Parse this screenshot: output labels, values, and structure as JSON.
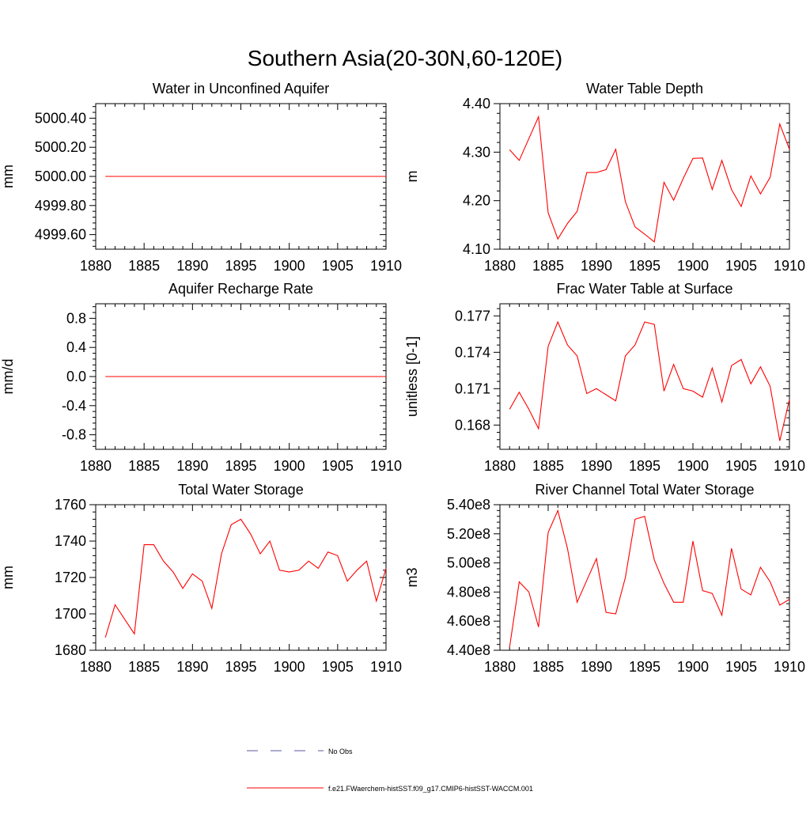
{
  "figure": {
    "title": "Southern Asia(20-30N,60-120E)",
    "legend": {
      "entries": [
        {
          "label": "No Obs",
          "color": "#5a5aa0",
          "style": "dashed"
        },
        {
          "label": "f.e21.FWaerchem-histSST.f09_g17.CMIP6-histSST-WACCM.001",
          "color": "#ff0000",
          "style": "solid"
        }
      ]
    }
  },
  "chart_data": [
    {
      "type": "line",
      "title": "Water in Unconfined Aquifer",
      "ylabel": "mm",
      "xlim": [
        1880,
        1910
      ],
      "ylim": [
        4999.5,
        5000.5
      ],
      "xticks": [
        "1880",
        "1885",
        "1890",
        "1895",
        "1900",
        "1905",
        "1910"
      ],
      "yticks": [
        "4999.60",
        "5000.00",
        "5000.20",
        "5000.40"
      ],
      "yticks_full": [
        "4999.60",
        "4999.80",
        "5000.00",
        "5000.20",
        "5000.40"
      ],
      "series": [
        {
          "color": "#ff0000",
          "x": [
            1881,
            1882,
            1883,
            1884,
            1885,
            1886,
            1887,
            1888,
            1889,
            1890,
            1891,
            1892,
            1893,
            1894,
            1895,
            1896,
            1897,
            1898,
            1899,
            1900,
            1901,
            1902,
            1903,
            1904,
            1905,
            1906,
            1907,
            1908,
            1909,
            1910
          ],
          "values": [
            5000,
            5000,
            5000,
            5000,
            5000,
            5000,
            5000,
            5000,
            5000,
            5000,
            5000,
            5000,
            5000,
            5000,
            5000,
            5000,
            5000,
            5000,
            5000,
            5000,
            5000,
            5000,
            5000,
            5000,
            5000,
            5000,
            5000,
            5000,
            5000,
            5000
          ]
        }
      ]
    },
    {
      "type": "line",
      "title": "Water Table Depth",
      "ylabel": "m",
      "xlim": [
        1880,
        1910
      ],
      "ylim": [
        4.1,
        4.4
      ],
      "xticks": [
        "1880",
        "1885",
        "1890",
        "1895",
        "1900",
        "1905",
        "1910"
      ],
      "yticks_full": [
        "4.10",
        "4.20",
        "4.30",
        "4.40"
      ],
      "series": [
        {
          "color": "#ff0000",
          "x": [
            1881,
            1882,
            1883,
            1884,
            1885,
            1886,
            1887,
            1888,
            1889,
            1890,
            1891,
            1892,
            1893,
            1894,
            1895,
            1896,
            1897,
            1898,
            1899,
            1900,
            1901,
            1902,
            1903,
            1904,
            1905,
            1906,
            1907,
            1908,
            1909,
            1910
          ],
          "values": [
            4.305,
            4.283,
            4.328,
            4.373,
            4.175,
            4.121,
            4.153,
            4.178,
            4.258,
            4.258,
            4.264,
            4.306,
            4.198,
            4.146,
            4.131,
            4.115,
            4.238,
            4.201,
            4.246,
            4.287,
            4.288,
            4.223,
            4.283,
            4.223,
            4.188,
            4.251,
            4.214,
            4.248,
            4.358,
            4.306
          ]
        }
      ]
    },
    {
      "type": "line",
      "title": "Aquifer Recharge Rate",
      "ylabel": "mm/d",
      "xlim": [
        1880,
        1910
      ],
      "ylim": [
        -1,
        1
      ],
      "xticks": [
        "1880",
        "1885",
        "1890",
        "1895",
        "1900",
        "1905",
        "1910"
      ],
      "yticks_full": [
        "-0.8",
        "-0.4",
        "0.0",
        "0.4",
        "0.8"
      ],
      "series": [
        {
          "color": "#ff0000",
          "x": [
            1881,
            1882,
            1883,
            1884,
            1885,
            1886,
            1887,
            1888,
            1889,
            1890,
            1891,
            1892,
            1893,
            1894,
            1895,
            1896,
            1897,
            1898,
            1899,
            1900,
            1901,
            1902,
            1903,
            1904,
            1905,
            1906,
            1907,
            1908,
            1909,
            1910
          ],
          "values": [
            0,
            0,
            0,
            0,
            0,
            0,
            0,
            0,
            0,
            0,
            0,
            0,
            0,
            0,
            0,
            0,
            0,
            0,
            0,
            0,
            0,
            0,
            0,
            0,
            0,
            0,
            0,
            0,
            0,
            0
          ]
        }
      ]
    },
    {
      "type": "line",
      "title": "Frac Water Table at Surface",
      "ylabel": "unitless [0-1]",
      "xlim": [
        1880,
        1910
      ],
      "ylim": [
        0.166,
        0.178
      ],
      "xticks": [
        "1880",
        "1885",
        "1890",
        "1895",
        "1900",
        "1905",
        "1910"
      ],
      "yticks_full": [
        "0.168",
        "0.171",
        "0.174",
        "0.177"
      ],
      "series": [
        {
          "color": "#ff0000",
          "x": [
            1881,
            1882,
            1883,
            1884,
            1885,
            1886,
            1887,
            1888,
            1889,
            1890,
            1891,
            1892,
            1893,
            1894,
            1895,
            1896,
            1897,
            1898,
            1899,
            1900,
            1901,
            1902,
            1903,
            1904,
            1905,
            1906,
            1907,
            1908,
            1909,
            1910
          ],
          "values": [
            0.1693,
            0.1707,
            0.1693,
            0.1677,
            0.1745,
            0.1765,
            0.1746,
            0.1737,
            0.1706,
            0.171,
            0.1705,
            0.17,
            0.1737,
            0.1746,
            0.1765,
            0.1763,
            0.1708,
            0.173,
            0.171,
            0.1708,
            0.1703,
            0.1727,
            0.1699,
            0.1729,
            0.1734,
            0.1714,
            0.1728,
            0.1712,
            0.1667,
            0.1701
          ]
        }
      ]
    },
    {
      "type": "line",
      "title": "Total Water Storage",
      "ylabel": "mm",
      "xlim": [
        1880,
        1910
      ],
      "ylim": [
        1680,
        1760
      ],
      "xticks": [
        "1880",
        "1885",
        "1890",
        "1895",
        "1900",
        "1905",
        "1910"
      ],
      "yticks_full": [
        "1680",
        "1700",
        "1720",
        "1740",
        "1760"
      ],
      "series": [
        {
          "color": "#ff0000",
          "x": [
            1881,
            1882,
            1883,
            1884,
            1885,
            1886,
            1887,
            1888,
            1889,
            1890,
            1891,
            1892,
            1893,
            1894,
            1895,
            1896,
            1897,
            1898,
            1899,
            1900,
            1901,
            1902,
            1903,
            1904,
            1905,
            1906,
            1907,
            1908,
            1909,
            1910
          ],
          "values": [
            1687,
            1705,
            1697,
            1689,
            1738,
            1738,
            1729,
            1723,
            1714,
            1722,
            1718,
            1703,
            1733,
            1749,
            1752,
            1744,
            1733,
            1740,
            1724,
            1723,
            1724,
            1729,
            1725,
            1734,
            1732,
            1718,
            1724,
            1729,
            1707,
            1725
          ]
        }
      ]
    },
    {
      "type": "line",
      "title": "River Channel Total Water Storage",
      "ylabel": "m3",
      "xlim": [
        1880,
        1910
      ],
      "ylim": [
        440000000,
        540000000
      ],
      "xticks": [
        "1880",
        "1885",
        "1890",
        "1895",
        "1900",
        "1905",
        "1910"
      ],
      "yticks_full": [
        "4.40e8",
        "4.60e8",
        "4.80e8",
        "5.00e8",
        "5.20e8",
        "5.40e8"
      ],
      "series": [
        {
          "color": "#ff0000",
          "x": [
            1881,
            1882,
            1883,
            1884,
            1885,
            1886,
            1887,
            1888,
            1889,
            1890,
            1891,
            1892,
            1893,
            1894,
            1895,
            1896,
            1897,
            1898,
            1899,
            1900,
            1901,
            1902,
            1903,
            1904,
            1905,
            1906,
            1907,
            1908,
            1909,
            1910
          ],
          "values": [
            442000000,
            487000000,
            480000000,
            456000000,
            521000000,
            536000000,
            510000000,
            473000000,
            488000000,
            503000000,
            466000000,
            465000000,
            490000000,
            530000000,
            532000000,
            502000000,
            486000000,
            473000000,
            473000000,
            515000000,
            481000000,
            479000000,
            464000000,
            510000000,
            482000000,
            478000000,
            497000000,
            487000000,
            471000000,
            475000000
          ]
        }
      ]
    }
  ]
}
